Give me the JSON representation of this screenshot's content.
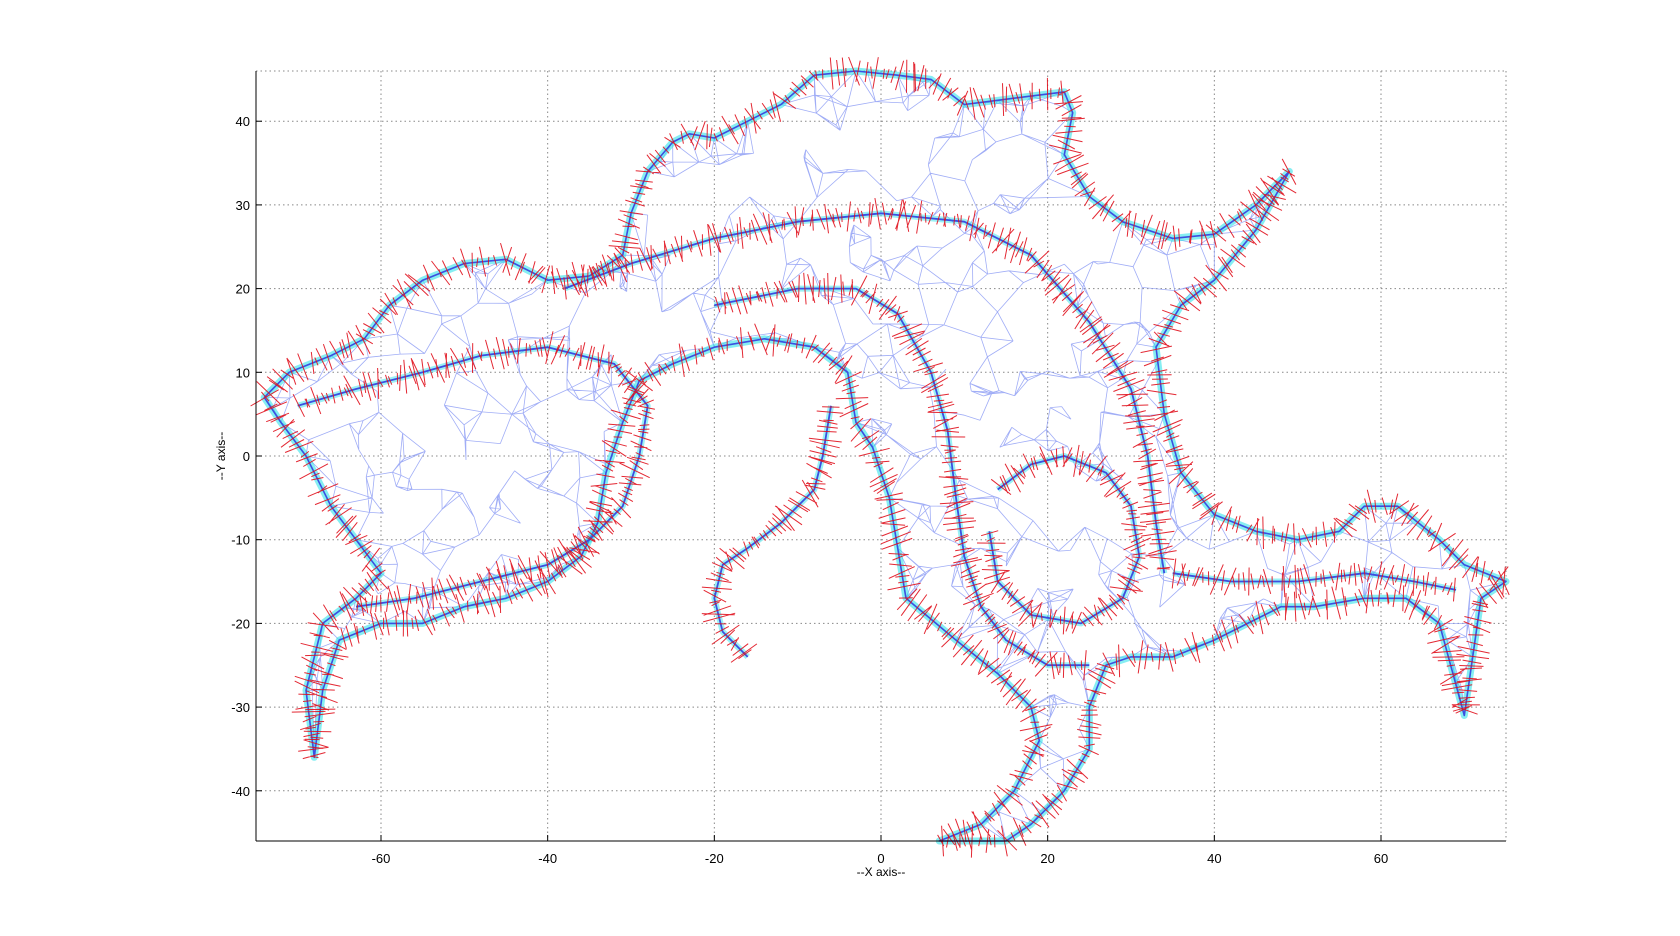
{
  "chart_data": {
    "type": "scatter",
    "xlabel": "--X axis--",
    "ylabel": "--Y axis--",
    "xlim": [
      -75,
      75
    ],
    "ylim": [
      -46,
      46
    ],
    "x_ticks": [
      -60,
      -40,
      -20,
      0,
      20,
      40,
      60
    ],
    "y_ticks": [
      -40,
      -30,
      -20,
      -10,
      0,
      10,
      20,
      30,
      40
    ],
    "grid": true,
    "grid_style": "dotted",
    "colors": {
      "mesh": "#3b4fe0",
      "mesh_light": "#8f9ff5",
      "outline": "#22e0e8",
      "normals": "#e0101c"
    },
    "series": [
      {
        "role": "outline",
        "points": [
          [
            -74,
            7
          ],
          [
            -71,
            10
          ],
          [
            -66,
            12
          ],
          [
            -62,
            14
          ],
          [
            -59,
            18
          ],
          [
            -55,
            21
          ],
          [
            -50,
            23
          ],
          [
            -45,
            23.5
          ],
          [
            -40,
            21
          ],
          [
            -35,
            21.5
          ],
          [
            -31,
            24
          ],
          [
            -30,
            29
          ],
          [
            -28,
            34
          ],
          [
            -25,
            37.5
          ],
          [
            -23,
            38.5
          ],
          [
            -20,
            38
          ],
          [
            -16,
            40
          ],
          [
            -12,
            42
          ],
          [
            -8,
            45.5
          ],
          [
            -3,
            46
          ],
          [
            2,
            45.5
          ],
          [
            6,
            45
          ],
          [
            10,
            42
          ],
          [
            14,
            42.5
          ],
          [
            18,
            43
          ],
          [
            22,
            43.5
          ],
          [
            23,
            41
          ],
          [
            22,
            36
          ],
          [
            25,
            31
          ],
          [
            29,
            28
          ],
          [
            35,
            26
          ],
          [
            40,
            26.5
          ],
          [
            45,
            30
          ],
          [
            49,
            34
          ],
          [
            45,
            27
          ],
          [
            40,
            21
          ],
          [
            36,
            18
          ],
          [
            33,
            13
          ],
          [
            34,
            5
          ],
          [
            36,
            -2
          ],
          [
            40,
            -7
          ],
          [
            45,
            -9
          ],
          [
            50,
            -10
          ],
          [
            55,
            -9
          ],
          [
            58,
            -6
          ],
          [
            62,
            -6
          ],
          [
            67,
            -10
          ],
          [
            70,
            -13
          ],
          [
            75,
            -15
          ],
          [
            72,
            -17
          ],
          [
            71,
            -24
          ],
          [
            70,
            -31
          ],
          [
            67,
            -20
          ],
          [
            63,
            -17
          ],
          [
            58,
            -17
          ],
          [
            52,
            -18
          ],
          [
            48,
            -18
          ],
          [
            44,
            -20
          ],
          [
            40,
            -22
          ],
          [
            35,
            -24
          ],
          [
            30,
            -24
          ],
          [
            27,
            -25
          ],
          [
            25,
            -30
          ],
          [
            25,
            -35
          ],
          [
            22,
            -40
          ],
          [
            18,
            -44
          ],
          [
            15,
            -46
          ],
          [
            7,
            -46
          ],
          [
            12,
            -44
          ],
          [
            16,
            -40
          ],
          [
            19,
            -34
          ],
          [
            18,
            -30
          ],
          [
            14,
            -26
          ],
          [
            9,
            -22
          ],
          [
            3,
            -17
          ],
          [
            2,
            -11
          ],
          [
            1,
            -5
          ],
          [
            -1,
            1
          ],
          [
            -3,
            4
          ],
          [
            -4,
            10
          ],
          [
            -8,
            13
          ],
          [
            -14,
            14
          ],
          [
            -20,
            13
          ],
          [
            -25,
            11
          ],
          [
            -29,
            9
          ],
          [
            -31,
            4
          ],
          [
            -33,
            -2
          ],
          [
            -34,
            -8
          ],
          [
            -36,
            -12
          ],
          [
            -40,
            -15
          ],
          [
            -45,
            -17
          ],
          [
            -50,
            -18
          ],
          [
            -55,
            -20
          ],
          [
            -60,
            -20
          ],
          [
            -65,
            -22
          ],
          [
            -67,
            -28
          ],
          [
            -68,
            -36
          ],
          [
            -69,
            -28
          ],
          [
            -67,
            -20
          ],
          [
            -63,
            -17
          ],
          [
            -60,
            -14
          ],
          [
            -63,
            -10
          ],
          [
            -66,
            -6
          ],
          [
            -69,
            0
          ],
          [
            -72,
            4
          ]
        ]
      },
      {
        "role": "inner-curve",
        "points": [
          [
            -70,
            6
          ],
          [
            -63,
            8
          ],
          [
            -55,
            10
          ],
          [
            -48,
            12
          ],
          [
            -40,
            13
          ],
          [
            -32,
            11
          ],
          [
            -28,
            6
          ],
          [
            -29,
            0
          ],
          [
            -31,
            -6
          ],
          [
            -35,
            -10
          ],
          [
            -40,
            -13
          ],
          [
            -48,
            -15
          ],
          [
            -56,
            -17
          ],
          [
            -63,
            -18
          ]
        ]
      },
      {
        "role": "inner-curve",
        "points": [
          [
            -38,
            20
          ],
          [
            -30,
            23
          ],
          [
            -20,
            26
          ],
          [
            -10,
            28
          ],
          [
            0,
            29
          ],
          [
            10,
            28
          ],
          [
            18,
            24
          ],
          [
            25,
            16
          ],
          [
            30,
            8
          ],
          [
            32,
            0
          ],
          [
            33,
            -8
          ],
          [
            34,
            -14
          ]
        ]
      },
      {
        "role": "inner-curve",
        "points": [
          [
            -20,
            18
          ],
          [
            -10,
            20
          ],
          [
            -3,
            20
          ],
          [
            2,
            17
          ],
          [
            6,
            10
          ],
          [
            8,
            3
          ],
          [
            9,
            -5
          ],
          [
            10,
            -12
          ],
          [
            12,
            -18
          ],
          [
            15,
            -22
          ],
          [
            20,
            -25
          ],
          [
            25,
            -25
          ]
        ]
      },
      {
        "role": "inner-curve",
        "points": [
          [
            14,
            -4
          ],
          [
            18,
            -1
          ],
          [
            22,
            0
          ],
          [
            27,
            -2
          ],
          [
            30,
            -6
          ],
          [
            31,
            -12
          ],
          [
            29,
            -17
          ],
          [
            24,
            -20
          ],
          [
            18,
            -19
          ],
          [
            14,
            -15
          ],
          [
            13,
            -9
          ]
        ]
      },
      {
        "role": "inner-curve",
        "points": [
          [
            -6,
            6
          ],
          [
            -7,
            0
          ],
          [
            -8,
            -4
          ],
          [
            -12,
            -8
          ],
          [
            -16,
            -11
          ],
          [
            -19,
            -13
          ],
          [
            -20,
            -17
          ],
          [
            -19,
            -21
          ],
          [
            -16,
            -24
          ]
        ]
      },
      {
        "role": "inner-curve",
        "points": [
          [
            35,
            -14
          ],
          [
            42,
            -15
          ],
          [
            50,
            -15
          ],
          [
            58,
            -14
          ],
          [
            64,
            -15
          ],
          [
            69,
            -16
          ]
        ]
      }
    ]
  }
}
